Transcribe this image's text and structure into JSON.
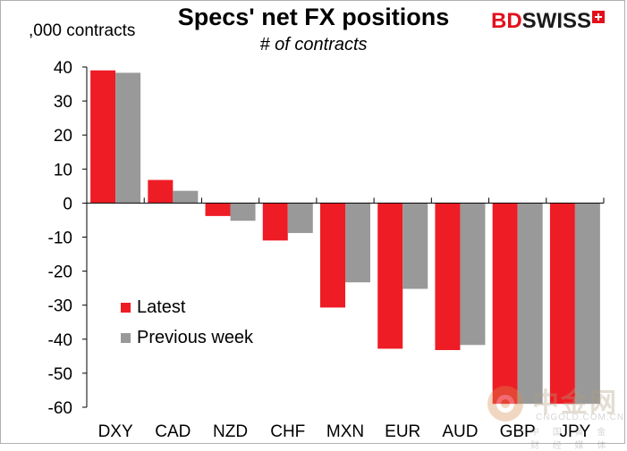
{
  "chart_data": {
    "type": "bar",
    "title": "Specs' net FX positions",
    "subtitle": "# of contracts",
    "ylabel": ",000 contracts",
    "categories": [
      "DXY",
      "CAD",
      "NZD",
      "CHF",
      "MXN",
      "EUR",
      "AUD",
      "GBP",
      "JPY"
    ],
    "series": [
      {
        "name": "Latest",
        "color": "#ee1c25",
        "values": [
          39,
          6.8,
          -3.8,
          -11,
          -30.7,
          -42.8,
          -43.2,
          -59,
          -59
        ]
      },
      {
        "name": "Previous week",
        "color": "#999999",
        "values": [
          38.3,
          3.6,
          -5.2,
          -8.8,
          -23.3,
          -25.2,
          -41.7,
          -59,
          -59
        ]
      }
    ],
    "ylim": [
      -60,
      40
    ],
    "yticks": [
      40,
      30,
      20,
      10,
      0,
      -10,
      -20,
      -30,
      -40,
      -50,
      -60
    ],
    "grid": false,
    "legend_position": "lower-left"
  },
  "logo": {
    "part1": "BD",
    "part2": "SWISS"
  },
  "watermark": {
    "name": "中金网",
    "url": "CNGOLD.COM.CN",
    "tagline": "中 国 黄 金 财 经 媒 体"
  }
}
